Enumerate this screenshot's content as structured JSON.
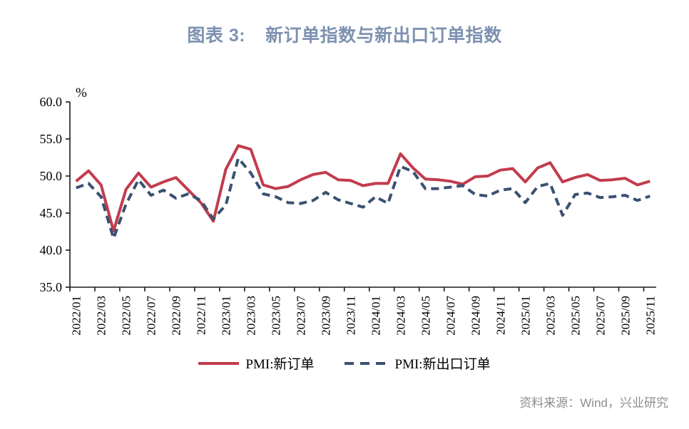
{
  "title": {
    "prefix": "图表 3:",
    "main": "新订单指数与新出口订单指数"
  },
  "colors": {
    "title": "#7E92B0",
    "axis": "#1A1A1A",
    "new_orders_line": "#C23C4E",
    "new_export_orders_line": "#3A5171",
    "source_text": "#8E8E8E"
  },
  "source": "资料来源：Wind，兴业研究",
  "chart_data": {
    "type": "line",
    "title": "图表 3: 新订单指数与新出口订单指数",
    "ylabel": "%",
    "ylim": [
      35.0,
      60.0
    ],
    "ytick_labels": [
      "35.0",
      "40.0",
      "45.0",
      "50.0",
      "55.0",
      "60.0"
    ],
    "grid": false,
    "legend_position": "bottom",
    "xtick_label_every": 2,
    "x": [
      "2022/01",
      "2022/02",
      "2022/03",
      "2022/04",
      "2022/05",
      "2022/06",
      "2022/07",
      "2022/08",
      "2022/09",
      "2022/10",
      "2022/11",
      "2022/12",
      "2023/01",
      "2023/02",
      "2023/03",
      "2023/04",
      "2023/05",
      "2023/06",
      "2023/07",
      "2023/08",
      "2023/09",
      "2023/10",
      "2023/11",
      "2023/12",
      "2024/01",
      "2024/02",
      "2024/03",
      "2024/04",
      "2024/05",
      "2024/06",
      "2024/07",
      "2024/08",
      "2024/09",
      "2024/10",
      "2024/11",
      "2024/12",
      "2025/01",
      "2025/02",
      "2025/03",
      "2025/04",
      "2025/05",
      "2025/06",
      "2025/07",
      "2025/08",
      "2025/09",
      "2025/10",
      "2025/11"
    ],
    "series": [
      {
        "name": "PMI:新订单",
        "style": "solid",
        "color": "#C23C4E",
        "values": [
          49.3,
          50.7,
          48.8,
          42.6,
          48.2,
          50.4,
          48.5,
          49.2,
          49.8,
          48.1,
          46.4,
          43.9,
          50.9,
          54.1,
          53.6,
          48.8,
          48.3,
          48.6,
          49.5,
          50.2,
          50.5,
          49.5,
          49.4,
          48.7,
          49.0,
          49.0,
          53.0,
          51.1,
          49.6,
          49.5,
          49.3,
          48.9,
          49.9,
          50.0,
          50.8,
          51.0,
          49.2,
          51.1,
          51.8,
          49.2,
          49.8,
          50.2,
          49.4,
          49.5,
          49.7,
          48.8,
          49.3
        ]
      },
      {
        "name": "PMI:新出口订单",
        "style": "dashed",
        "color": "#3A5171",
        "values": [
          48.4,
          49.0,
          47.2,
          41.6,
          46.2,
          49.5,
          47.4,
          48.1,
          47.0,
          47.6,
          46.7,
          44.2,
          46.1,
          52.4,
          50.4,
          47.6,
          47.2,
          46.4,
          46.3,
          46.7,
          47.8,
          46.8,
          46.3,
          45.8,
          47.2,
          46.3,
          51.3,
          50.6,
          48.3,
          48.3,
          48.5,
          48.7,
          47.5,
          47.3,
          48.1,
          48.3,
          46.4,
          48.6,
          49.0,
          44.7,
          47.5,
          47.7,
          47.1,
          47.2,
          47.4,
          46.7,
          47.3
        ]
      }
    ]
  }
}
